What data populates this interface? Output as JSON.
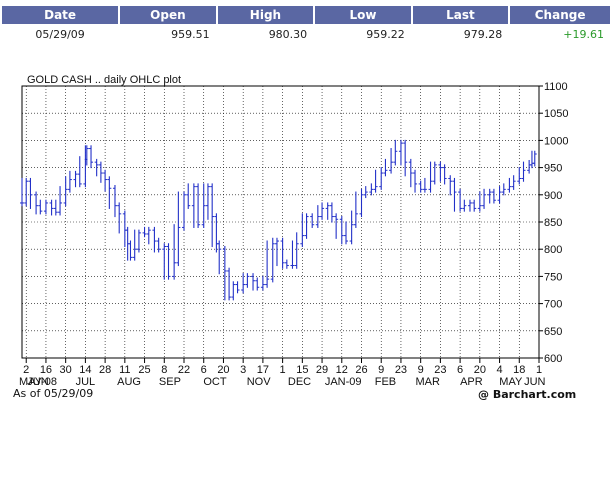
{
  "quote": {
    "headers": [
      "Date",
      "Open",
      "High",
      "Low",
      "Last",
      "Change"
    ],
    "row": [
      "05/29/09",
      "959.51",
      "980.30",
      "959.22",
      "979.28",
      "+19.61"
    ]
  },
  "chart_data": {
    "type": "line",
    "title": "GOLD CASH .. daily OHLC plot",
    "ylim": [
      600,
      1100
    ],
    "yticks": [
      600,
      650,
      700,
      750,
      800,
      850,
      900,
      950,
      1000,
      1050,
      1100
    ],
    "xlim": [
      "2008-05-30",
      "2009-06-01"
    ],
    "day_ticks": [
      {
        "d": "2008-06-02",
        "label": "2"
      },
      {
        "d": "2008-06-16",
        "label": "16"
      },
      {
        "d": "2008-06-30",
        "label": "30"
      },
      {
        "d": "2008-07-14",
        "label": "14"
      },
      {
        "d": "2008-07-28",
        "label": "28"
      },
      {
        "d": "2008-08-11",
        "label": "11"
      },
      {
        "d": "2008-08-25",
        "label": "25"
      },
      {
        "d": "2008-09-08",
        "label": "8"
      },
      {
        "d": "2008-09-22",
        "label": "22"
      },
      {
        "d": "2008-10-06",
        "label": "6"
      },
      {
        "d": "2008-10-20",
        "label": "20"
      },
      {
        "d": "2008-11-03",
        "label": "3"
      },
      {
        "d": "2008-11-17",
        "label": "17"
      },
      {
        "d": "2008-12-01",
        "label": "1"
      },
      {
        "d": "2008-12-15",
        "label": "15"
      },
      {
        "d": "2008-12-29",
        "label": "29"
      },
      {
        "d": "2009-01-12",
        "label": "12"
      },
      {
        "d": "2009-01-26",
        "label": "26"
      },
      {
        "d": "2009-02-09",
        "label": "9"
      },
      {
        "d": "2009-02-23",
        "label": "23"
      },
      {
        "d": "2009-03-09",
        "label": "9"
      },
      {
        "d": "2009-03-23",
        "label": "23"
      },
      {
        "d": "2009-04-06",
        "label": "6"
      },
      {
        "d": "2009-04-20",
        "label": "20"
      },
      {
        "d": "2009-05-04",
        "label": "4"
      },
      {
        "d": "2009-05-18",
        "label": "18"
      },
      {
        "d": "2009-06-01",
        "label": "1"
      }
    ],
    "month_labels": [
      {
        "d": "2008-05-31",
        "label": "MAY-08"
      },
      {
        "d": "2008-06-08",
        "label": "JUN"
      },
      {
        "d": "2008-07-14",
        "label": "JUL"
      },
      {
        "d": "2008-08-14",
        "label": "AUG"
      },
      {
        "d": "2008-09-12",
        "label": "SEP"
      },
      {
        "d": "2008-10-14",
        "label": "OCT"
      },
      {
        "d": "2008-11-14",
        "label": "NOV"
      },
      {
        "d": "2008-12-13",
        "label": "DEC"
      },
      {
        "d": "2009-01-13",
        "label": "JAN-09"
      },
      {
        "d": "2009-02-12",
        "label": "FEB"
      },
      {
        "d": "2009-03-14",
        "label": "MAR"
      },
      {
        "d": "2009-04-14",
        "label": "APR"
      },
      {
        "d": "2009-05-12",
        "label": "MAY"
      },
      {
        "d": "2009-05-29",
        "label": "JUN"
      }
    ],
    "series": [
      {
        "points": [
          [
            "2008-05-30",
            885
          ],
          [
            "2008-06-02",
            925
          ],
          [
            "2008-06-05",
            900
          ],
          [
            "2008-06-09",
            880
          ],
          [
            "2008-06-12",
            870
          ],
          [
            "2008-06-16",
            885
          ],
          [
            "2008-06-20",
            875
          ],
          [
            "2008-06-23",
            868
          ],
          [
            "2008-06-26",
            885
          ],
          [
            "2008-06-30",
            910
          ],
          [
            "2008-07-03",
            928
          ],
          [
            "2008-07-07",
            938
          ],
          [
            "2008-07-10",
            920
          ],
          [
            "2008-07-14",
            965
          ],
          [
            "2008-07-15",
            985
          ],
          [
            "2008-07-18",
            960
          ],
          [
            "2008-07-22",
            955
          ],
          [
            "2008-07-25",
            940
          ],
          [
            "2008-07-28",
            928
          ],
          [
            "2008-07-31",
            912
          ],
          [
            "2008-08-04",
            880
          ],
          [
            "2008-08-07",
            865
          ],
          [
            "2008-08-11",
            835
          ],
          [
            "2008-08-13",
            810
          ],
          [
            "2008-08-15",
            785
          ],
          [
            "2008-08-18",
            800
          ],
          [
            "2008-08-21",
            830
          ],
          [
            "2008-08-25",
            828
          ],
          [
            "2008-08-28",
            835
          ],
          [
            "2008-09-01",
            815
          ],
          [
            "2008-09-04",
            800
          ],
          [
            "2008-09-08",
            805
          ],
          [
            "2008-09-11",
            750
          ],
          [
            "2008-09-15",
            775
          ],
          [
            "2008-09-18",
            840
          ],
          [
            "2008-09-22",
            900
          ],
          [
            "2008-09-25",
            880
          ],
          [
            "2008-09-29",
            915
          ],
          [
            "2008-10-02",
            845
          ],
          [
            "2008-10-06",
            880
          ],
          [
            "2008-10-09",
            915
          ],
          [
            "2008-10-12",
            860
          ],
          [
            "2008-10-15",
            810
          ],
          [
            "2008-10-17",
            800
          ],
          [
            "2008-10-21",
            760
          ],
          [
            "2008-10-24",
            712
          ],
          [
            "2008-10-27",
            735
          ],
          [
            "2008-10-30",
            725
          ],
          [
            "2008-11-03",
            735
          ],
          [
            "2008-11-06",
            750
          ],
          [
            "2008-11-10",
            742
          ],
          [
            "2008-11-13",
            730
          ],
          [
            "2008-11-17",
            735
          ],
          [
            "2008-11-20",
            745
          ],
          [
            "2008-11-24",
            810
          ],
          [
            "2008-11-27",
            815
          ],
          [
            "2008-12-01",
            775
          ],
          [
            "2008-12-04",
            770
          ],
          [
            "2008-12-08",
            770
          ],
          [
            "2008-12-11",
            810
          ],
          [
            "2008-12-15",
            825
          ],
          [
            "2008-12-18",
            860
          ],
          [
            "2008-12-22",
            845
          ],
          [
            "2008-12-26",
            860
          ],
          [
            "2008-12-29",
            875
          ],
          [
            "2009-01-02",
            880
          ],
          [
            "2009-01-05",
            860
          ],
          [
            "2009-01-08",
            855
          ],
          [
            "2009-01-12",
            825
          ],
          [
            "2009-01-15",
            815
          ],
          [
            "2009-01-19",
            845
          ],
          [
            "2009-01-22",
            865
          ],
          [
            "2009-01-26",
            900
          ],
          [
            "2009-01-29",
            905
          ],
          [
            "2009-02-02",
            910
          ],
          [
            "2009-02-05",
            915
          ],
          [
            "2009-02-09",
            940
          ],
          [
            "2009-02-12",
            945
          ],
          [
            "2009-02-16",
            960
          ],
          [
            "2009-02-19",
            980
          ],
          [
            "2009-02-23",
            995
          ],
          [
            "2009-02-26",
            960
          ],
          [
            "2009-03-02",
            940
          ],
          [
            "2009-03-05",
            920
          ],
          [
            "2009-03-09",
            910
          ],
          [
            "2009-03-12",
            910
          ],
          [
            "2009-03-16",
            925
          ],
          [
            "2009-03-19",
            955
          ],
          [
            "2009-03-23",
            950
          ],
          [
            "2009-03-26",
            930
          ],
          [
            "2009-03-30",
            925
          ],
          [
            "2009-04-02",
            905
          ],
          [
            "2009-04-06",
            875
          ],
          [
            "2009-04-09",
            880
          ],
          [
            "2009-04-13",
            885
          ],
          [
            "2009-04-16",
            875
          ],
          [
            "2009-04-20",
            880
          ],
          [
            "2009-04-23",
            900
          ],
          [
            "2009-04-27",
            905
          ],
          [
            "2009-04-30",
            890
          ],
          [
            "2009-05-04",
            905
          ],
          [
            "2009-05-07",
            910
          ],
          [
            "2009-05-11",
            915
          ],
          [
            "2009-05-14",
            925
          ],
          [
            "2009-05-18",
            930
          ],
          [
            "2009-05-21",
            945
          ],
          [
            "2009-05-25",
            955
          ],
          [
            "2009-05-27",
            958
          ],
          [
            "2009-05-29",
            975
          ]
        ]
      }
    ]
  },
  "footer": {
    "as_of": "As of 05/29/09",
    "credit": "@ Barchart.com"
  }
}
